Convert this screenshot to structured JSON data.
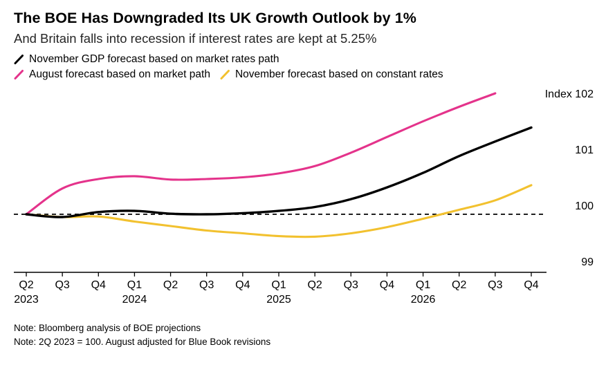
{
  "header": {
    "title": "The BOE Has Downgraded Its UK Growth Outlook by 1%",
    "subtitle": "And Britain falls into recession if interest rates are kept at 5.25%"
  },
  "notes": {
    "line1": "Note: Bloomberg analysis of BOE projections",
    "line2": "Note: 2Q 2023 = 100. August adjusted for Blue Book revisions"
  },
  "chart_data": {
    "type": "line",
    "categories": [
      "Q2",
      "Q3",
      "Q4",
      "Q1",
      "Q2",
      "Q3",
      "Q4",
      "Q1",
      "Q2",
      "Q3",
      "Q4",
      "Q1",
      "Q2",
      "Q3",
      "Q4"
    ],
    "year_labels": [
      {
        "index": 0,
        "label": "2023"
      },
      {
        "index": 3,
        "label": "2024"
      },
      {
        "index": 7,
        "label": "2025"
      },
      {
        "index": 11,
        "label": "2026"
      }
    ],
    "series": [
      {
        "name": "November GDP forecast based on market rates path",
        "color": "#000000",
        "values": [
          100,
          99.95,
          100.04,
          100.06,
          100.01,
          100.0,
          100.02,
          100.06,
          100.13,
          100.27,
          100.48,
          100.74,
          101.04,
          101.3,
          101.55
        ]
      },
      {
        "name": "August forecast based on market path",
        "color": "#e4338b",
        "values": [
          100,
          100.46,
          100.63,
          100.68,
          100.62,
          100.63,
          100.66,
          100.73,
          100.86,
          101.1,
          101.38,
          101.66,
          101.92,
          102.16,
          null
        ]
      },
      {
        "name": "November forecast based on constant rates",
        "color": "#f2c12f",
        "values": [
          100,
          99.95,
          99.96,
          99.87,
          99.79,
          99.71,
          99.66,
          99.61,
          99.6,
          99.66,
          99.77,
          99.92,
          100.08,
          100.25,
          100.52
        ]
      }
    ],
    "baseline": 100,
    "yaxis": {
      "labels": [
        {
          "value": 102,
          "text": "Index 102"
        },
        {
          "value": 101,
          "text": "101"
        },
        {
          "value": 100,
          "text": "100"
        },
        {
          "value": 99,
          "text": "99"
        }
      ]
    },
    "ylim": [
      98.75,
      102.35
    ],
    "grid": "baseline-dashed-only",
    "legend_position": "top"
  }
}
